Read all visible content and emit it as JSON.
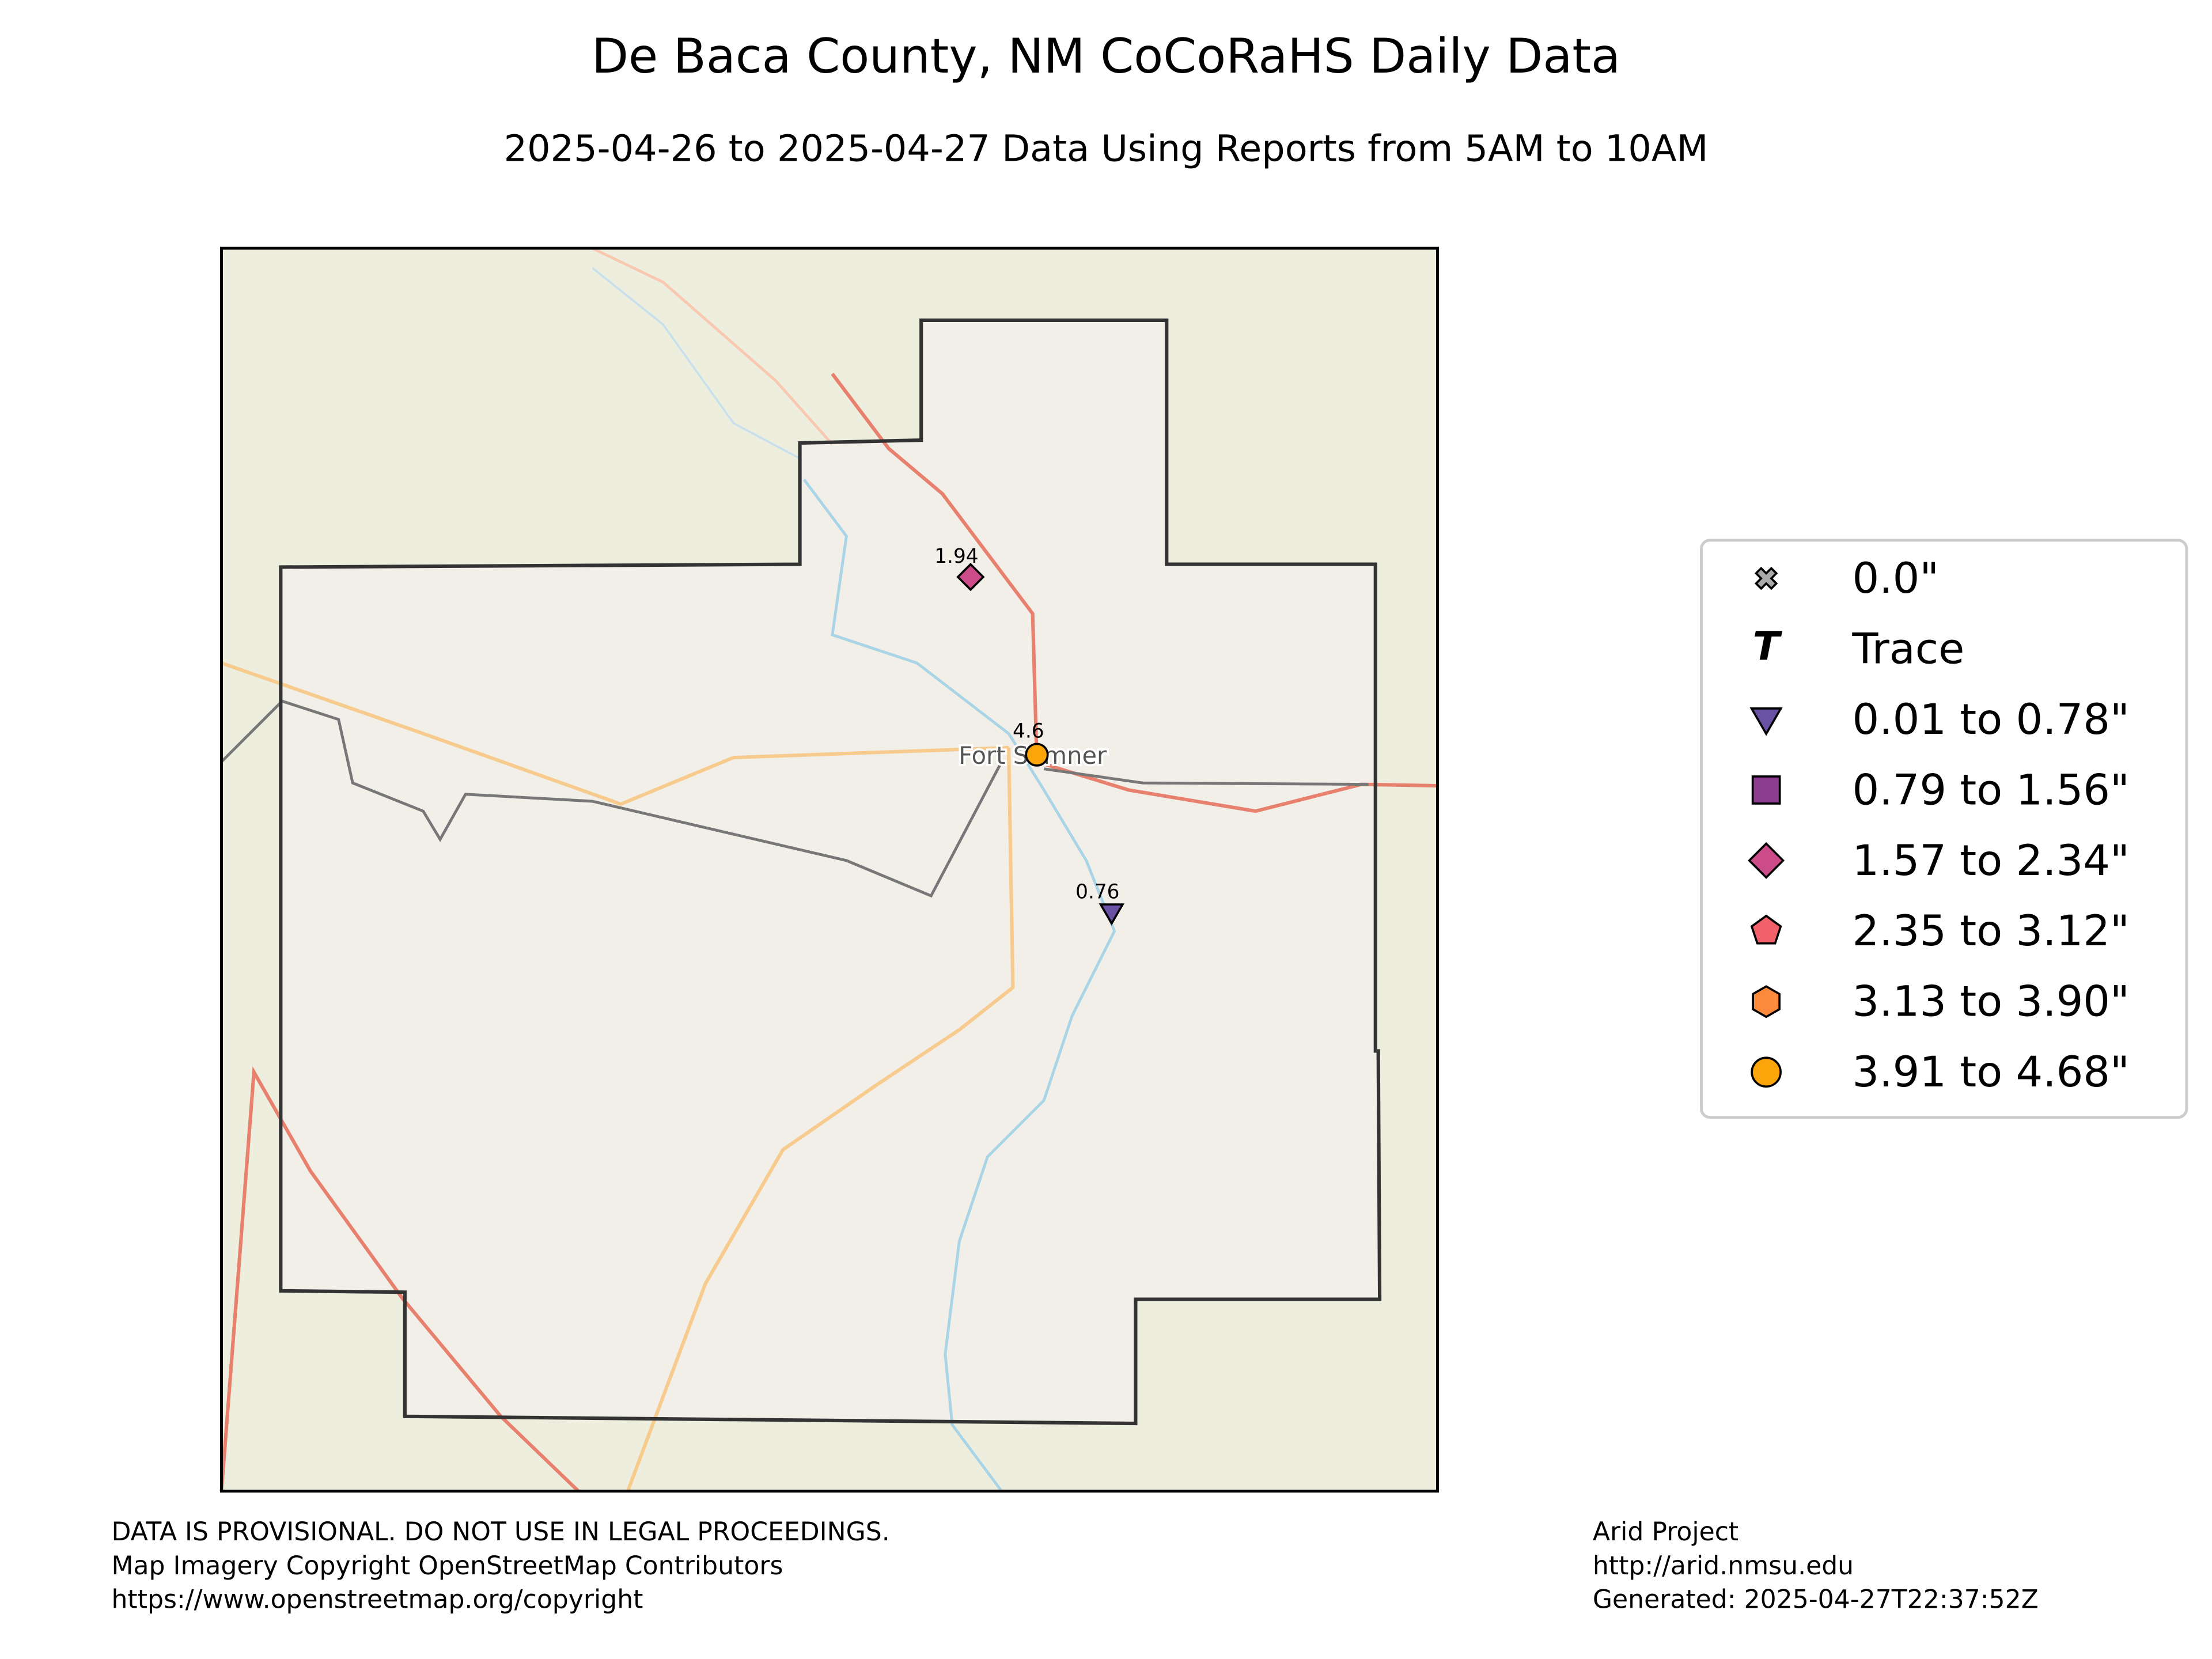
{
  "header": {
    "title": "De Baca County, NM CoCoRaHS Daily Data",
    "subtitle": "2025-04-26 to 2025-04-27 Data Using Reports from 5AM to 10AM"
  },
  "map": {
    "place_label": "Fort Sumner",
    "stations": [
      {
        "value": 1.94,
        "marker": "diamond",
        "color": "#cc4c8a"
      },
      {
        "value": 4.6,
        "marker": "circle",
        "color": "#fca50a"
      },
      {
        "value": 0.76,
        "marker": "triangle",
        "color": "#6a51a3"
      }
    ]
  },
  "legend": [
    {
      "label": "0.0\"",
      "marker": "x",
      "color": "#aaaaaa"
    },
    {
      "label": "Trace",
      "symbol": "T",
      "color": "#000000"
    },
    {
      "label": "0.01 to 0.78\"",
      "marker": "triangle",
      "color": "#6a51a3"
    },
    {
      "label": "0.79 to 1.56\"",
      "marker": "square",
      "color": "#8c3d8f"
    },
    {
      "label": "1.57 to 2.34\"",
      "marker": "diamond",
      "color": "#cc4c8a"
    },
    {
      "label": "2.35 to 3.12\"",
      "marker": "pentagon",
      "color": "#f2606a"
    },
    {
      "label": "3.13 to 3.90\"",
      "marker": "hexagon",
      "color": "#fb8a3c"
    },
    {
      "label": "3.91 to 4.68\"",
      "marker": "circle",
      "color": "#fca50a"
    }
  ],
  "footer": {
    "left": [
      "DATA IS PROVISIONAL. DO NOT USE IN LEGAL PROCEEDINGS.",
      "Map Imagery Copyright OpenStreetMap Contributors",
      "https://www.openstreetmap.org/copyright"
    ],
    "right": [
      "Arid Project",
      "http://arid.nmsu.edu",
      "Generated: 2025-04-27T22:37:52Z"
    ]
  }
}
